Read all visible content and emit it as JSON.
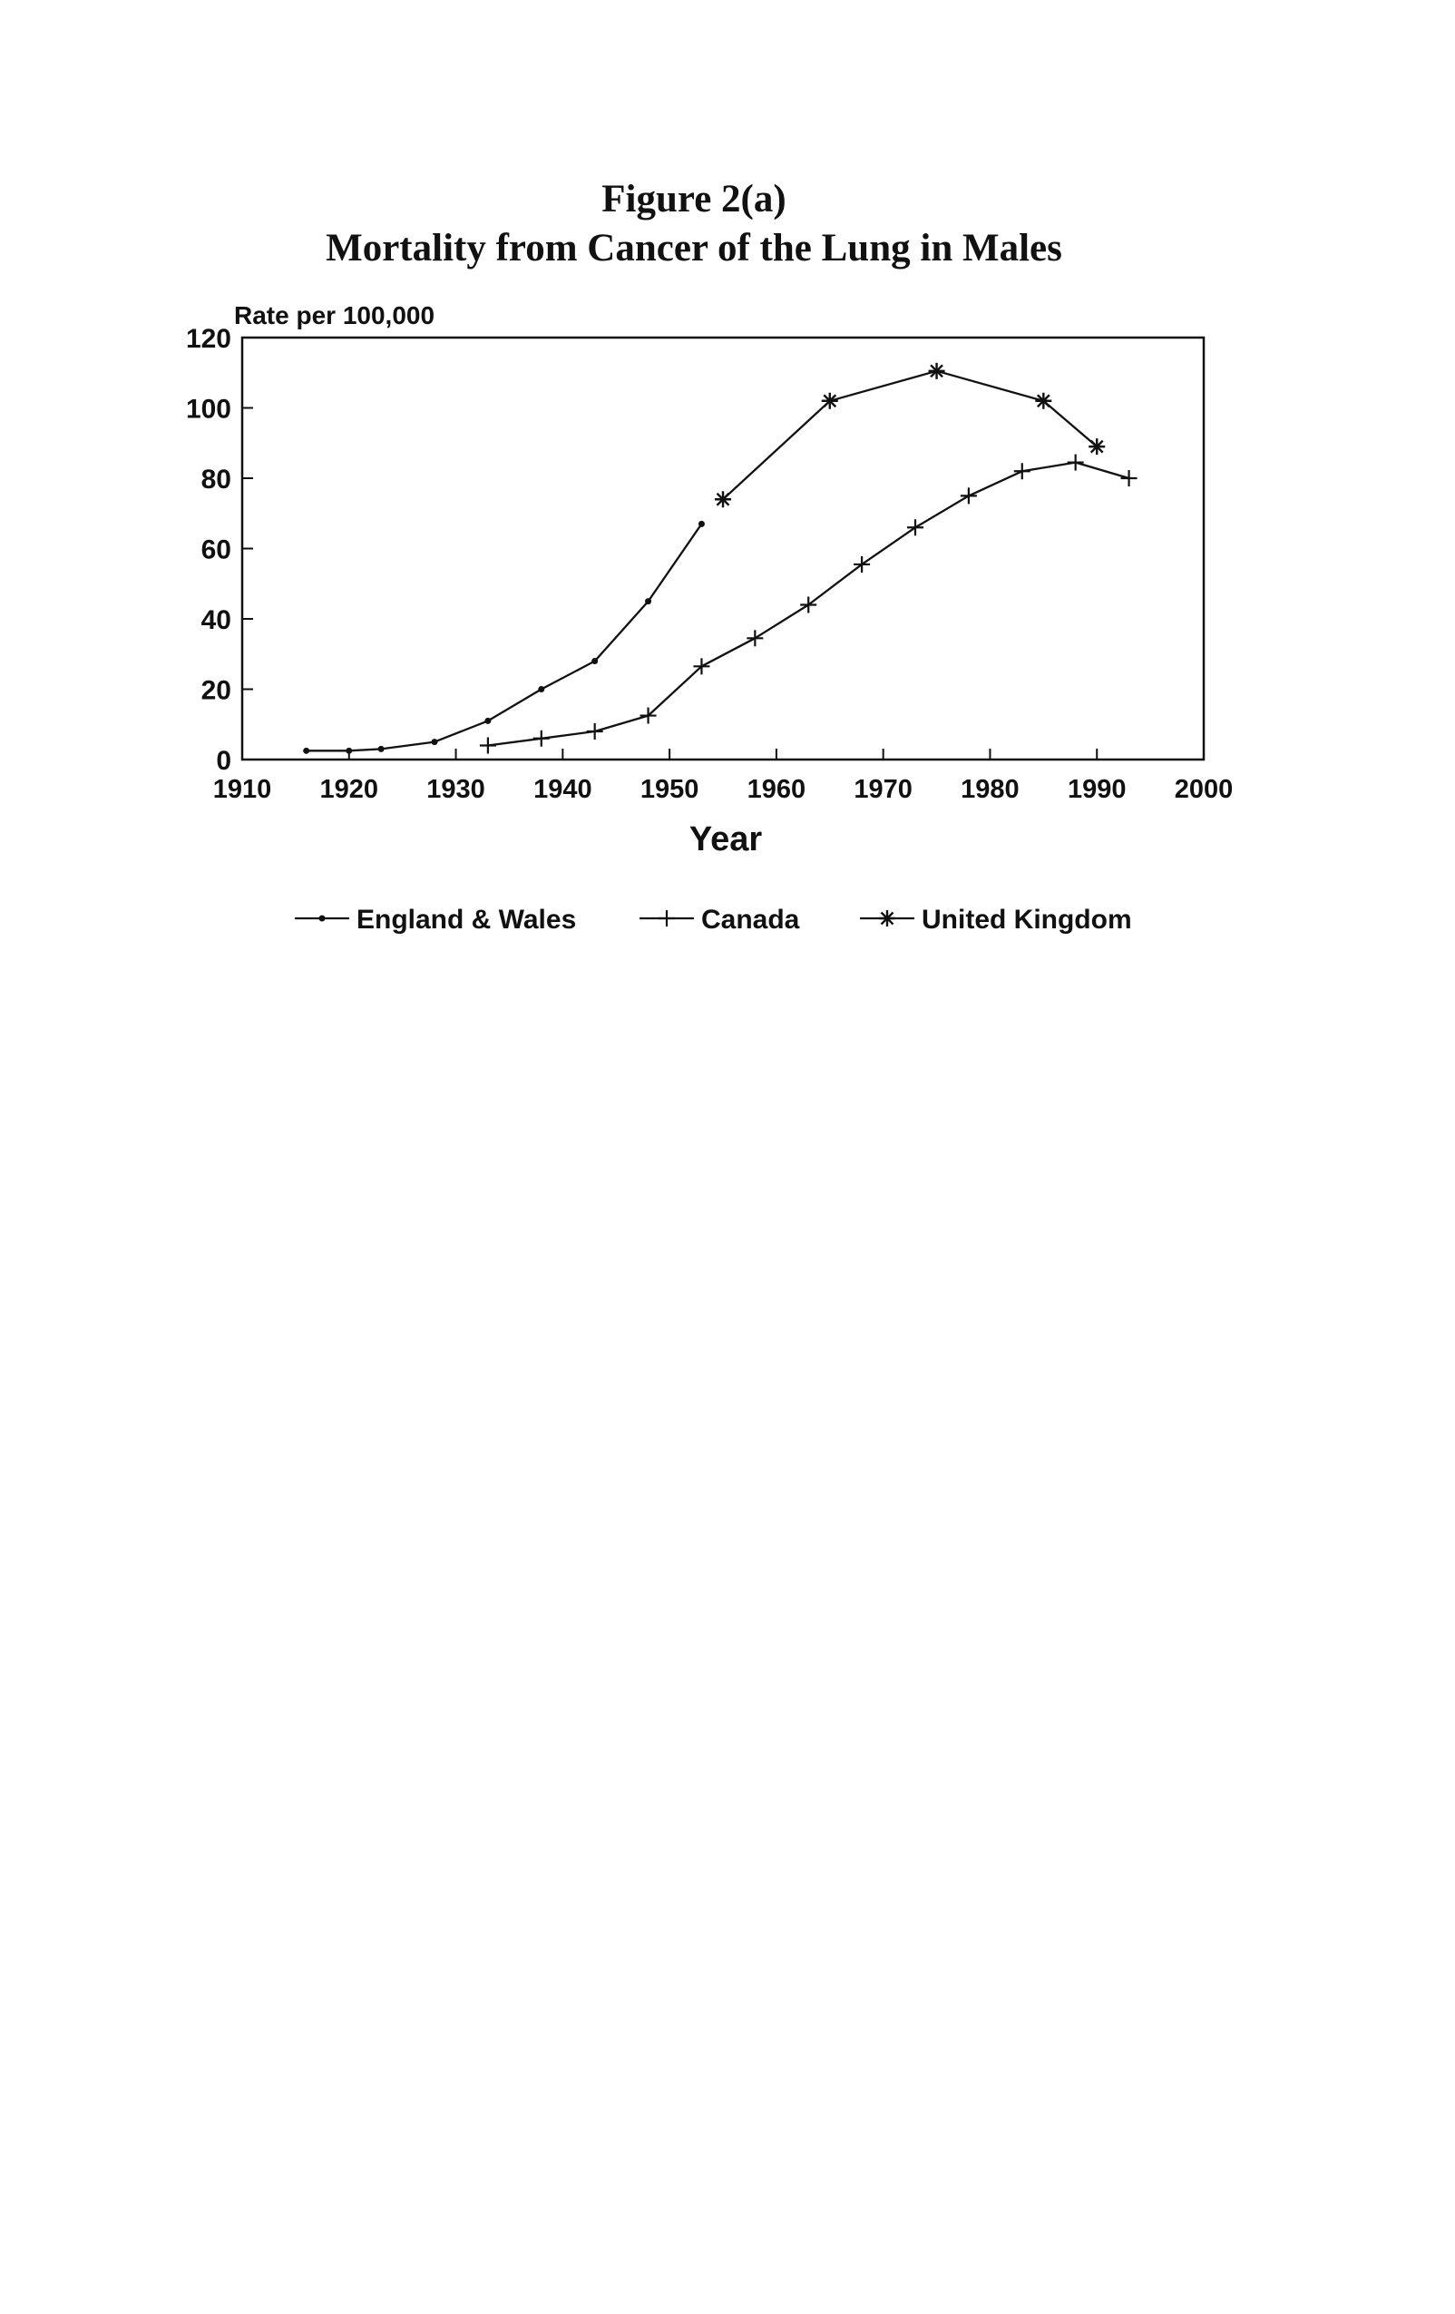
{
  "figure": {
    "number": "Figure 2(a)",
    "title": "Mortality from Cancer of the Lung in Males"
  },
  "chart_data": {
    "type": "line",
    "title": "Mortality from Cancer of the Lung in Males",
    "ylabel": "Rate per 100,000",
    "xlabel": "Year",
    "xlim": [
      1910,
      2000
    ],
    "ylim": [
      0,
      120
    ],
    "xticks": [
      "1910",
      "1920",
      "1930",
      "1940",
      "1950",
      "1960",
      "1970",
      "1980",
      "1990",
      "2000"
    ],
    "yticks": [
      "0",
      "20",
      "40",
      "60",
      "80",
      "100",
      "120"
    ],
    "grid": false,
    "legend_position": "bottom",
    "colors": {
      "line": "#111111",
      "text": "#111111"
    },
    "series": [
      {
        "name": "England & Wales",
        "marker": "dot",
        "x": [
          1916,
          1920,
          1923,
          1928,
          1933,
          1938,
          1943,
          1948,
          1953
        ],
        "y": [
          2.5,
          2.5,
          3,
          5,
          11,
          20,
          28,
          45,
          67
        ]
      },
      {
        "name": "Canada",
        "marker": "plus",
        "x": [
          1933,
          1938,
          1943,
          1948,
          1953,
          1958,
          1963,
          1968,
          1973,
          1978,
          1983,
          1988,
          1993
        ],
        "y": [
          4,
          6,
          8,
          12.5,
          26.5,
          34.5,
          44,
          55.5,
          66,
          75,
          82,
          84.5,
          80
        ]
      },
      {
        "name": "United Kingdom",
        "marker": "asterisk",
        "x": [
          1955,
          1965,
          1975,
          1985,
          1990
        ],
        "y": [
          74,
          102,
          110.5,
          102,
          89
        ]
      }
    ]
  }
}
